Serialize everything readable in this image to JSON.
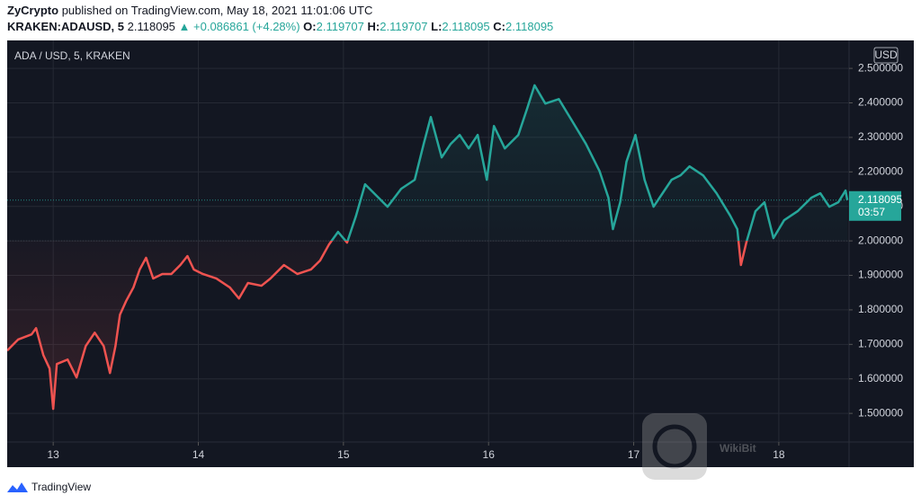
{
  "header": {
    "author": "ZyCrypto",
    "published": "published on TradingView.com, May 18, 2021 11:01:06 UTC",
    "symbol": "KRAKEN:ADAUSD, 5",
    "last": "2.118095",
    "change": "▲ +0.086861 (+4.28%)",
    "open_label": "O:",
    "open": "2.119707",
    "high_label": "H:",
    "high": "2.119707",
    "low_label": "L:",
    "low": "2.118095",
    "close_label": "C:",
    "close": "2.118095"
  },
  "chart_data": {
    "type": "baseline",
    "title": "ADA / USD, 5, KRAKEN",
    "currency": "USD",
    "countdown": "03:57",
    "base_value": 2.0,
    "grid": true,
    "x": [
      12.683,
      12.758,
      12.851,
      12.882,
      12.932,
      12.975,
      13,
      13.025,
      13.099,
      13.161,
      13.224,
      13.286,
      13.348,
      13.391,
      13.429,
      13.46,
      13.503,
      13.553,
      13.596,
      13.64,
      13.689,
      13.752,
      13.814,
      13.876,
      13.925,
      13.969,
      14.031,
      14.124,
      14.217,
      14.28,
      14.342,
      14.435,
      14.497,
      14.59,
      14.683,
      14.776,
      14.839,
      14.901,
      14.963,
      15.025,
      15.087,
      15.149,
      15.211,
      15.304,
      15.398,
      15.491,
      15.553,
      15.602,
      15.677,
      15.739,
      15.801,
      15.863,
      15.925,
      15.988,
      16.037,
      16.112,
      16.205,
      16.267,
      16.317,
      16.391,
      16.484,
      16.578,
      16.671,
      16.764,
      16.826,
      16.857,
      16.907,
      16.95,
      17.012,
      17.075,
      17.137,
      17.199,
      17.261,
      17.323,
      17.385,
      17.478,
      17.571,
      17.665,
      17.714,
      17.739,
      17.776,
      17.839,
      17.901,
      17.963,
      18.037,
      18.13,
      18.224,
      18.286,
      18.348,
      18.41,
      18.46,
      18.472
    ],
    "series": [
      {
        "name": "ADAUSD",
        "color_above": "#26a69a",
        "color_below": "#ef5350",
        "values": [
          1.682,
          1.714,
          1.729,
          1.747,
          1.669,
          1.63,
          1.513,
          1.643,
          1.656,
          1.604,
          1.695,
          1.734,
          1.695,
          1.617,
          1.695,
          1.786,
          1.826,
          1.865,
          1.917,
          1.951,
          1.891,
          1.904,
          1.904,
          1.93,
          1.956,
          1.917,
          1.904,
          1.891,
          1.865,
          1.833,
          1.878,
          1.87,
          1.891,
          1.93,
          1.904,
          1.917,
          1.943,
          1.99,
          2.026,
          1.995,
          2.073,
          2.164,
          2.138,
          2.099,
          2.151,
          2.177,
          2.281,
          2.359,
          2.242,
          2.281,
          2.307,
          2.268,
          2.307,
          2.177,
          2.333,
          2.268,
          2.307,
          2.385,
          2.451,
          2.398,
          2.411,
          2.346,
          2.281,
          2.203,
          2.125,
          2.034,
          2.112,
          2.229,
          2.307,
          2.177,
          2.099,
          2.138,
          2.177,
          2.19,
          2.216,
          2.19,
          2.138,
          2.073,
          2.034,
          1.93,
          1.995,
          2.086,
          2.112,
          2.008,
          2.06,
          2.086,
          2.125,
          2.138,
          2.099,
          2.112,
          2.146,
          2.118095
        ]
      }
    ],
    "xlim": [
      12.683,
      18.484
    ],
    "xticks": [
      13,
      14,
      15,
      16,
      17,
      18
    ],
    "ylim": [
      1.417,
      2.581
    ],
    "yticks": [
      {
        "value": 1.5,
        "label": "1.500000"
      },
      {
        "value": 1.6,
        "label": "1.600000"
      },
      {
        "value": 1.7,
        "label": "1.700000"
      },
      {
        "value": 1.8,
        "label": "1.800000"
      },
      {
        "value": 1.9,
        "label": "1.900000"
      },
      {
        "value": 2.0,
        "label": "2.000000"
      },
      {
        "value": 2.1,
        "label": "2.100000"
      },
      {
        "value": 2.2,
        "label": "2.200000"
      },
      {
        "value": 2.3,
        "label": "2.300000"
      },
      {
        "value": 2.4,
        "label": "2.400000"
      },
      {
        "value": 2.5,
        "label": "2.500000"
      }
    ]
  },
  "footer": {
    "brand": "TradingView"
  },
  "watermark": {
    "text": "WikiBit"
  }
}
